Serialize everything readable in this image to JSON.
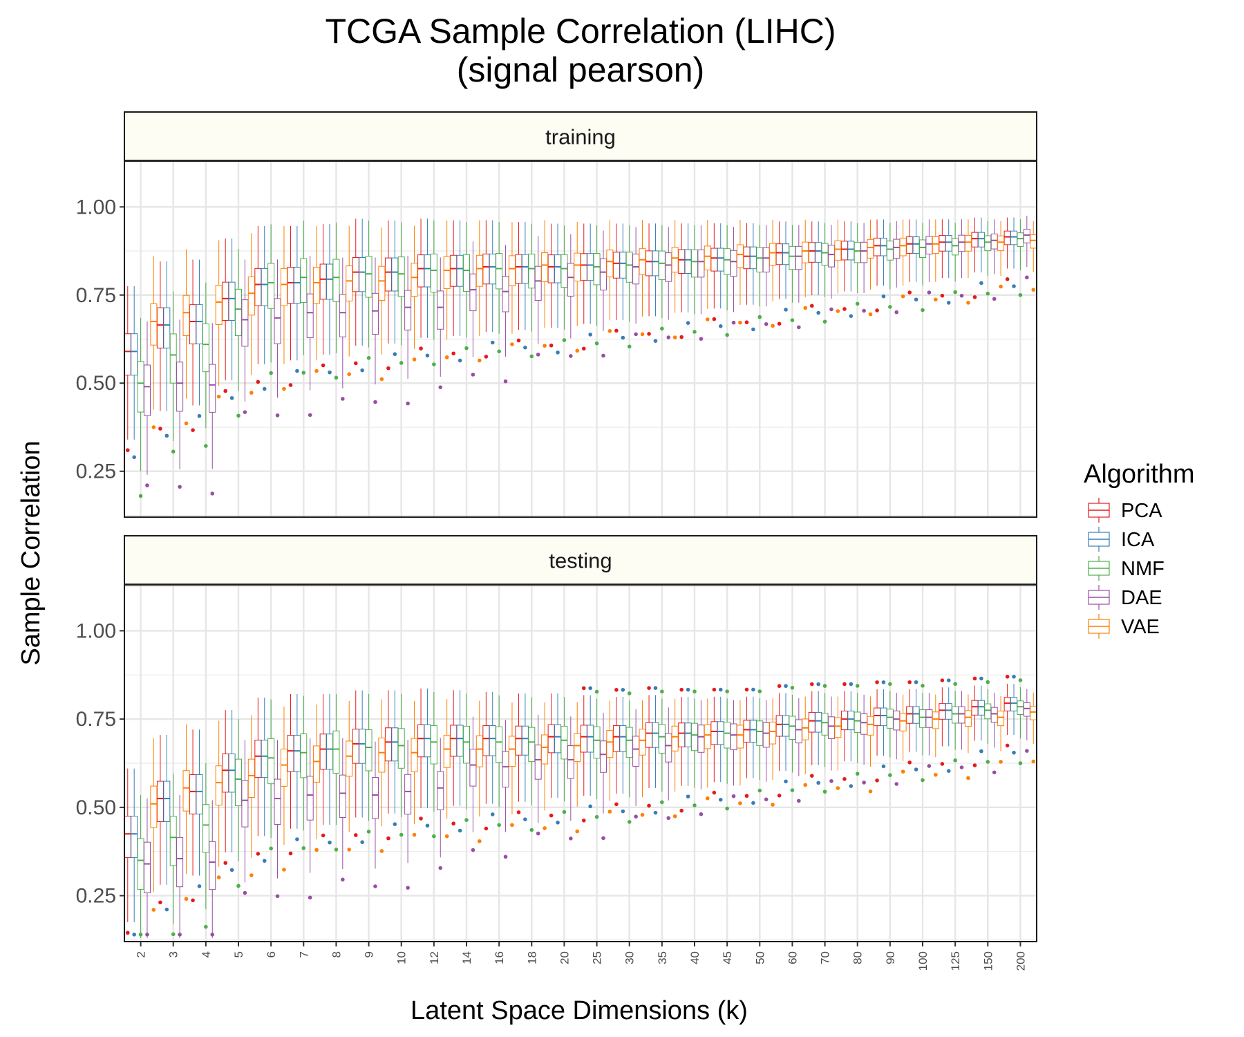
{
  "chart_data": {
    "type": "boxplot",
    "title": "TCGA Sample Correlation (LIHC)",
    "subtitle": "(signal pearson)",
    "xlabel": "Latent Space Dimensions (k)",
    "ylabel": "Sample Correlation",
    "ylim": [
      0.12,
      1.13
    ],
    "yticks": [
      "0.25",
      "0.50",
      "0.75",
      "1.00"
    ],
    "categories": [
      "2",
      "3",
      "4",
      "5",
      "6",
      "7",
      "8",
      "9",
      "10",
      "12",
      "14",
      "16",
      "18",
      "20",
      "25",
      "30",
      "35",
      "40",
      "45",
      "50",
      "60",
      "70",
      "80",
      "90",
      "100",
      "125",
      "150",
      "200"
    ],
    "legend": {
      "title": "Algorithm",
      "placement": "right"
    },
    "series": [
      {
        "name": "PCA",
        "color": "#e41a1c"
      },
      {
        "name": "ICA",
        "color": "#377eb8"
      },
      {
        "name": "NMF",
        "color": "#4daf4a"
      },
      {
        "name": "DAE",
        "color": "#984ea3"
      },
      {
        "name": "VAE",
        "color": "#ff7f00"
      }
    ],
    "panels": [
      {
        "name": "training",
        "medians": {
          "PCA": [
            0.59,
            0.665,
            0.675,
            0.74,
            0.78,
            0.785,
            0.795,
            0.815,
            0.815,
            0.825,
            0.825,
            0.83,
            0.83,
            0.83,
            0.835,
            0.84,
            0.845,
            0.85,
            0.855,
            0.86,
            0.87,
            0.875,
            0.88,
            0.89,
            0.895,
            0.9,
            0.91,
            0.915
          ],
          "ICA": [
            0.59,
            0.665,
            0.675,
            0.74,
            0.78,
            0.785,
            0.795,
            0.815,
            0.815,
            0.825,
            0.825,
            0.83,
            0.83,
            0.83,
            0.835,
            0.84,
            0.845,
            0.85,
            0.855,
            0.86,
            0.87,
            0.875,
            0.88,
            0.89,
            0.895,
            0.9,
            0.91,
            0.915
          ],
          "NMF": [
            0.5,
            0.58,
            0.61,
            0.71,
            0.785,
            0.8,
            0.8,
            0.81,
            0.81,
            0.82,
            0.82,
            0.825,
            0.825,
            0.825,
            0.83,
            0.835,
            0.84,
            0.845,
            0.85,
            0.855,
            0.86,
            0.87,
            0.875,
            0.88,
            0.885,
            0.89,
            0.9,
            0.91
          ],
          "DAE": [
            0.49,
            0.5,
            0.495,
            0.68,
            0.685,
            0.7,
            0.7,
            0.705,
            0.715,
            0.715,
            0.765,
            0.76,
            0.79,
            0.8,
            0.815,
            0.83,
            0.835,
            0.845,
            0.845,
            0.855,
            0.86,
            0.865,
            0.875,
            0.885,
            0.895,
            0.9,
            0.905,
            0.92
          ],
          "VAE": [
            0.675,
            0.7,
            0.73,
            0.755,
            0.78,
            0.785,
            0.79,
            0.79,
            0.8,
            0.82,
            0.825,
            0.825,
            0.835,
            0.835,
            0.845,
            0.85,
            0.855,
            0.86,
            0.865,
            0.87,
            0.875,
            0.88,
            0.885,
            0.89,
            0.895,
            0.9,
            0.9,
            0.905
          ]
        }
      },
      {
        "name": "testing",
        "medians": {
          "PCA": [
            0.425,
            0.525,
            0.545,
            0.605,
            0.645,
            0.66,
            0.665,
            0.68,
            0.685,
            0.695,
            0.695,
            0.695,
            0.695,
            0.7,
            0.7,
            0.7,
            0.71,
            0.71,
            0.715,
            0.72,
            0.735,
            0.745,
            0.75,
            0.76,
            0.765,
            0.775,
            0.785,
            0.795
          ],
          "ICA": [
            0.425,
            0.525,
            0.545,
            0.605,
            0.645,
            0.66,
            0.665,
            0.68,
            0.685,
            0.695,
            0.695,
            0.695,
            0.695,
            0.7,
            0.7,
            0.7,
            0.71,
            0.71,
            0.715,
            0.72,
            0.735,
            0.745,
            0.75,
            0.76,
            0.765,
            0.775,
            0.785,
            0.795
          ],
          "NMF": [
            0.35,
            0.415,
            0.45,
            0.58,
            0.64,
            0.655,
            0.665,
            0.67,
            0.675,
            0.685,
            0.685,
            0.685,
            0.685,
            0.69,
            0.69,
            0.69,
            0.7,
            0.705,
            0.71,
            0.715,
            0.73,
            0.74,
            0.745,
            0.755,
            0.755,
            0.765,
            0.775,
            0.785
          ],
          "DAE": [
            0.34,
            0.355,
            0.345,
            0.52,
            0.525,
            0.535,
            0.54,
            0.535,
            0.545,
            0.555,
            0.62,
            0.615,
            0.635,
            0.635,
            0.65,
            0.665,
            0.675,
            0.7,
            0.705,
            0.71,
            0.72,
            0.73,
            0.74,
            0.75,
            0.755,
            0.765,
            0.765,
            0.78
          ],
          "VAE": [
            0.51,
            0.555,
            0.57,
            0.59,
            0.62,
            0.63,
            0.645,
            0.655,
            0.655,
            0.665,
            0.665,
            0.665,
            0.67,
            0.675,
            0.685,
            0.69,
            0.7,
            0.705,
            0.705,
            0.715,
            0.725,
            0.73,
            0.735,
            0.745,
            0.75,
            0.755,
            0.755,
            0.77
          ]
        }
      }
    ]
  }
}
